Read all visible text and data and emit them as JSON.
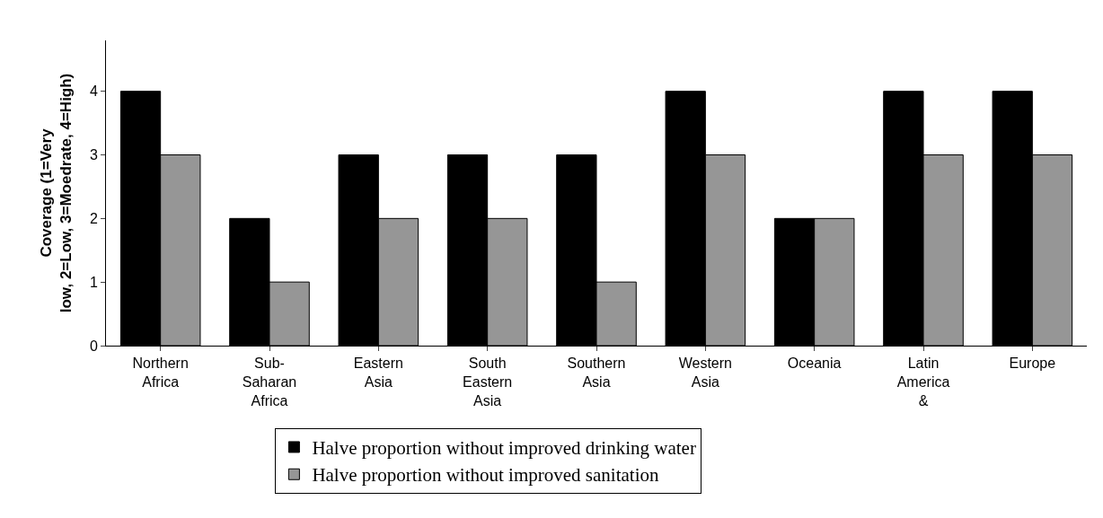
{
  "chart_data": {
    "type": "bar",
    "ylabel": "Coverage (1=Very low, 2=Low, 3=Moedrate, 4=High)",
    "categories": [
      "Northern Africa",
      "Sub-Saharan Africa",
      "Eastern Asia",
      "South Eastern Asia",
      "Southern Asia",
      "Western Asia",
      "Oceania",
      "Latin America &",
      "Europe"
    ],
    "series": [
      {
        "name": "Halve proportion without improved drinking water",
        "color": "#000000",
        "values": [
          4,
          2,
          3,
          3,
          3,
          4,
          2,
          4,
          4
        ]
      },
      {
        "name": "Halve proportion without improved sanitation",
        "color": "#969696",
        "values": [
          3,
          1,
          2,
          2,
          1,
          3,
          2,
          3,
          3
        ]
      }
    ],
    "ylim": [
      0,
      4.8
    ],
    "yticks": [
      0,
      1,
      2,
      3,
      4
    ],
    "legend": "bottom"
  }
}
